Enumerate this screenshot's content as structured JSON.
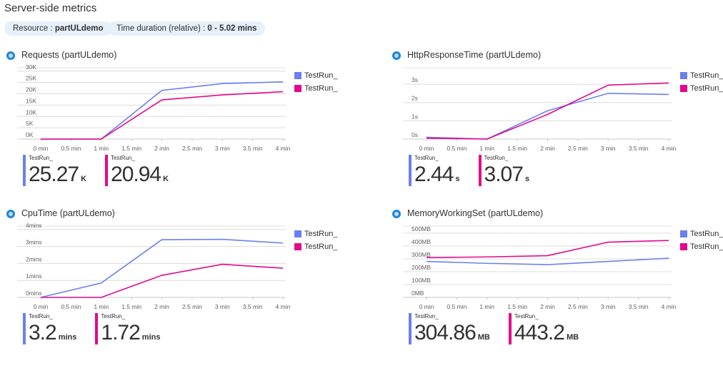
{
  "header": {
    "title": "Server-side metrics",
    "resource_label": "Resource : ",
    "resource_value": "partULdemo",
    "duration_label": "Time duration (relative) : ",
    "duration_value": "0 - 5.02 mins"
  },
  "colors": {
    "series1": "#6b7ff0",
    "series2": "#e3088c"
  },
  "chart_data": [
    {
      "type": "line",
      "title": "Requests (partULdemo)",
      "x": [
        0,
        1,
        2,
        3,
        4
      ],
      "xticks": [
        "0 min",
        "0.5 min",
        "1 min",
        "1.5 min",
        "2 min",
        "2.5 min",
        "3 min",
        "3.5 min",
        "4 min"
      ],
      "yticks": [
        {
          "v": 0,
          "l": "0K"
        },
        {
          "v": 5000,
          "l": "5K"
        },
        {
          "v": 10000,
          "l": "10K"
        },
        {
          "v": 15000,
          "l": "15K"
        },
        {
          "v": 20000,
          "l": "20K"
        },
        {
          "v": 25000,
          "l": "25K"
        },
        {
          "v": 30000,
          "l": "30K"
        }
      ],
      "ylim": [
        0,
        31500
      ],
      "series": [
        {
          "name": "TestRun_",
          "values": [
            0,
            0,
            21500,
            24500,
            25270
          ],
          "summary": "25.27",
          "unit": "K"
        },
        {
          "name": "TestRun_",
          "values": [
            0,
            0,
            17300,
            19500,
            20940
          ],
          "summary": "20.94",
          "unit": "K"
        }
      ]
    },
    {
      "type": "line",
      "title": "HttpResponseTime (partULdemo)",
      "x": [
        0,
        1,
        2,
        3,
        4
      ],
      "xticks": [
        "0 min",
        "0.5 min",
        "1 min",
        "1.5 min",
        "2 min",
        "2.5 min",
        "3 min",
        "3.5 min",
        "4 min"
      ],
      "yticks": [
        {
          "v": 0,
          "l": "0s"
        },
        {
          "v": 1,
          "l": "1s"
        },
        {
          "v": 2,
          "l": "2s"
        },
        {
          "v": 3,
          "l": "3s"
        }
      ],
      "ylim": [
        0,
        3.9
      ],
      "series": [
        {
          "name": "TestRun_",
          "values": [
            0.1,
            0,
            1.55,
            2.5,
            2.44
          ],
          "summary": "2.44",
          "unit": "s"
        },
        {
          "name": "TestRun_",
          "values": [
            0.05,
            0,
            1.35,
            2.95,
            3.07
          ],
          "summary": "3.07",
          "unit": "s"
        }
      ]
    },
    {
      "type": "line",
      "title": "CpuTime (partULdemo)",
      "x": [
        0,
        1,
        2,
        3,
        4
      ],
      "xticks": [
        "0 min",
        "0.5 min",
        "1 min",
        "1.5 min",
        "2 min",
        "2.5 min",
        "3 min",
        "3.5 min",
        "4 min"
      ],
      "yticks": [
        {
          "v": 0,
          "l": "0mins"
        },
        {
          "v": 1,
          "l": "1mins"
        },
        {
          "v": 2,
          "l": "2mins"
        },
        {
          "v": 3,
          "l": "3mins"
        },
        {
          "v": 4,
          "l": "4mins"
        }
      ],
      "ylim": [
        0,
        4.2
      ],
      "series": [
        {
          "name": "TestRun_",
          "values": [
            0,
            0.85,
            3.4,
            3.42,
            3.2
          ],
          "summary": "3.2",
          "unit": "mins"
        },
        {
          "name": "TestRun_",
          "values": [
            0,
            0,
            1.3,
            1.95,
            1.72
          ],
          "summary": "1.72",
          "unit": "mins"
        }
      ]
    },
    {
      "type": "line",
      "title": "MemoryWorkingSet (partULdemo)",
      "x": [
        0,
        1,
        2,
        3,
        4
      ],
      "xticks": [
        "0 min",
        "0.5 min",
        "1 min",
        "1.5 min",
        "2 min",
        "2.5 min",
        "3 min",
        "3.5 min",
        "4 min"
      ],
      "yticks": [
        {
          "v": 0,
          "l": "0MB"
        },
        {
          "v": 100,
          "l": "100MB"
        },
        {
          "v": 200,
          "l": "200MB"
        },
        {
          "v": 300,
          "l": "300MB"
        },
        {
          "v": 400,
          "l": "400MB"
        },
        {
          "v": 500,
          "l": "500MB"
        }
      ],
      "ylim": [
        0,
        555
      ],
      "series": [
        {
          "name": "TestRun_",
          "values": [
            280,
            265,
            255,
            280,
            304.86
          ],
          "summary": "304.86",
          "unit": "MB"
        },
        {
          "name": "TestRun_",
          "values": [
            310,
            315,
            325,
            430,
            443.2
          ],
          "summary": "443.2",
          "unit": "MB"
        }
      ]
    }
  ]
}
